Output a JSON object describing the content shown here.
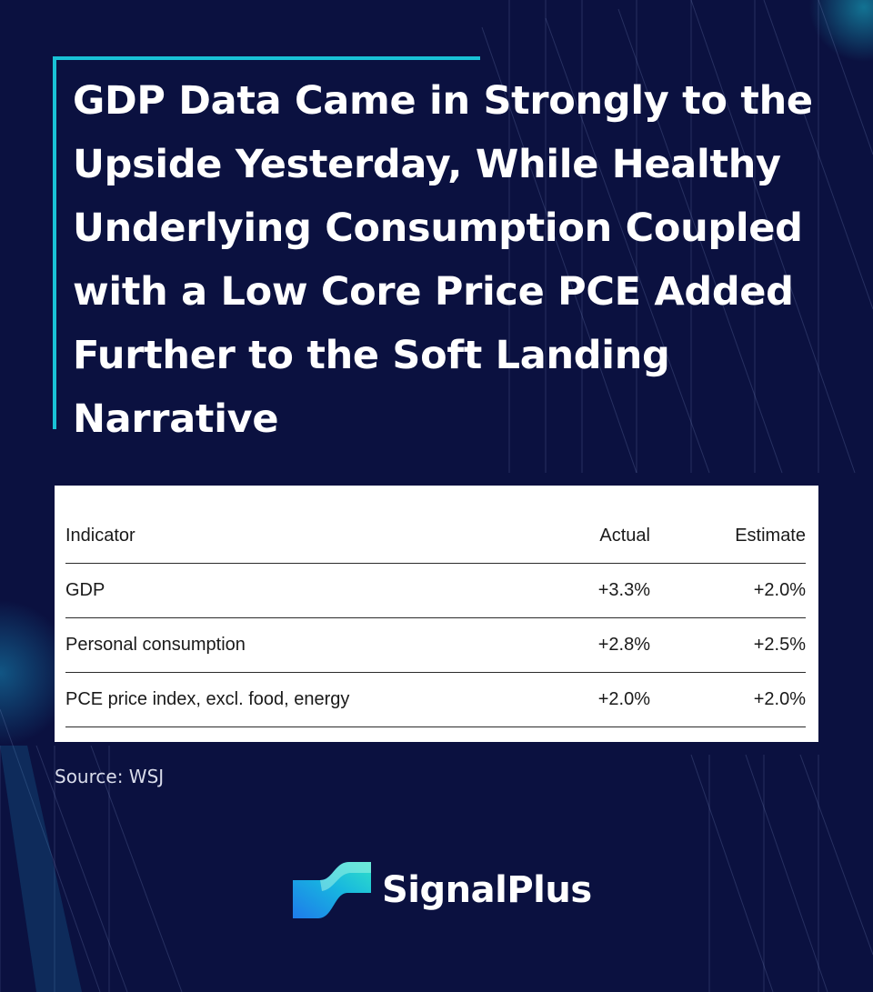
{
  "headline": "GDP Data Came in Strongly to the Upside Yesterday, While Healthy Underlying Consumption Coupled with a Low Core Price PCE Added Further to the Soft Landing Narrative",
  "table": {
    "headers": {
      "indicator": "Indicator",
      "actual": "Actual",
      "estimate": "Estimate"
    },
    "rows": [
      {
        "indicator": "GDP",
        "actual": "+3.3%",
        "estimate": "+2.0%"
      },
      {
        "indicator": "Personal consumption",
        "actual": "+2.8%",
        "estimate": "+2.5%"
      },
      {
        "indicator": "PCE price index, excl. food, energy",
        "actual": "+2.0%",
        "estimate": "+2.0%"
      }
    ]
  },
  "source": "Source: WSJ",
  "brand": {
    "name": "SignalPlus",
    "icon": "signalplus-logo-icon"
  },
  "colors": {
    "background": "#0b1140",
    "accent": "#19c2d6",
    "card": "#ffffff"
  }
}
